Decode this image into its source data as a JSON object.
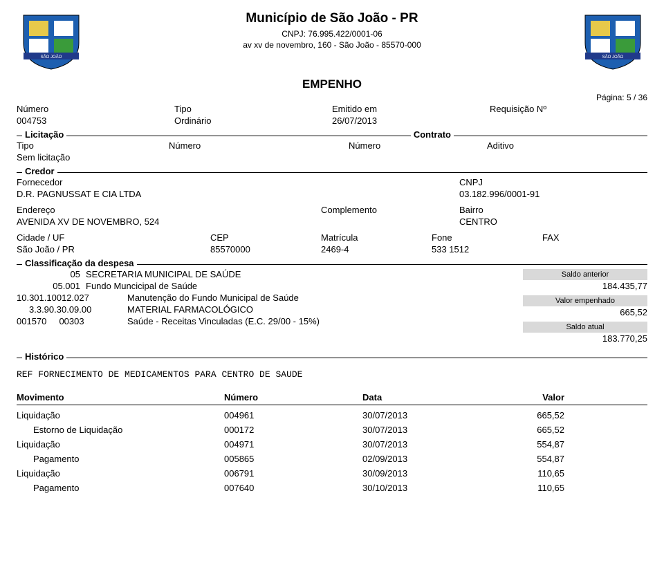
{
  "header": {
    "municipality": "Município de São João - PR",
    "cnpj_line": "CNPJ: 76.995.422/0001-06",
    "address_line": "av xv de novembro, 160 - São João - 85570-000",
    "doc_title": "EMPENHO",
    "page_label": "Página: 5 /   36"
  },
  "info": {
    "numero_label": "Número",
    "numero_value": "004753",
    "tipo_label": "Tipo",
    "tipo_value": "Ordinário",
    "emitido_label": "Emitido em",
    "emitido_value": "26/07/2013",
    "requisicao_label": "Requisição Nº",
    "requisicao_value": ""
  },
  "licitacao": {
    "section_label": "Licitação",
    "contrato_label": "Contrato",
    "tipo_label": "Tipo",
    "numero_label": "Número",
    "numero2_label": "Número",
    "aditivo_label": "Aditivo",
    "tipo_value": "Sem licitação"
  },
  "credor": {
    "section_label": "Credor",
    "fornecedor_label": "Fornecedor",
    "fornecedor_value": "D.R. PAGNUSSAT E CIA LTDA",
    "cnpj_label": "CNPJ",
    "cnpj_value": "03.182.996/0001-91",
    "endereco_label": "Endereço",
    "endereco_value": "AVENIDA XV DE NOVEMBRO, 524",
    "complemento_label": "Complemento",
    "complemento_value": "",
    "bairro_label": "Bairro",
    "bairro_value": "CENTRO",
    "cidade_label": "Cidade / UF",
    "cidade_value": "São João / PR",
    "cep_label": "CEP",
    "cep_value": "85570000",
    "matricula_label": "Matrícula",
    "matricula_value": "2469-4",
    "fone_label": "Fone",
    "fone_value": "533 1512",
    "fax_label": "FAX",
    "fax_value": ""
  },
  "classificacao": {
    "section_label": "Classificação da despesa",
    "lines": [
      {
        "code": "05",
        "desc": "SECRETARIA MUNICIPAL DE SAÚDE"
      },
      {
        "code": "05.001",
        "desc": "Fundo Muncicipal de Saúde"
      },
      {
        "code": "10.301.10012.027",
        "desc": "Manutenção do Fundo Municipal de Saúde"
      },
      {
        "code": "3.3.90.30.09.00",
        "desc": "MATERIAL FARMACOLÓGICO"
      },
      {
        "code": "001570     00303",
        "desc": "Saúde - Receitas Vinculadas (E.C. 29/00 - 15%)"
      }
    ],
    "saldo_ant_label": "Saldo anterior",
    "saldo_ant_value": "184.435,77",
    "valor_emp_label": "Valor empenhado",
    "valor_emp_value": "665,52",
    "saldo_atual_label": "Saldo atual",
    "saldo_atual_value": "183.770,25"
  },
  "historico": {
    "section_label": "Histórico",
    "text": "REF FORNECIMENTO DE MEDICAMENTOS PARA CENTRO DE SAUDE"
  },
  "movimento": {
    "headers": {
      "m1": "Movimento",
      "m2": "Número",
      "m3": "Data",
      "m4": "Valor"
    },
    "rows": [
      {
        "indent": false,
        "m1": "Liquidação",
        "m2": "004961",
        "m3": "30/07/2013",
        "m4": "665,52"
      },
      {
        "indent": true,
        "m1": "Estorno de Liquidação",
        "m2": "000172",
        "m3": "30/07/2013",
        "m4": "665,52"
      },
      {
        "indent": false,
        "m1": "Liquidação",
        "m2": "004971",
        "m3": "30/07/2013",
        "m4": "554,87"
      },
      {
        "indent": true,
        "m1": "Pagamento",
        "m2": "005865",
        "m3": "02/09/2013",
        "m4": "554,87"
      },
      {
        "indent": false,
        "m1": "Liquidação",
        "m2": "006791",
        "m3": "30/09/2013",
        "m4": "110,65"
      },
      {
        "indent": true,
        "m1": "Pagamento",
        "m2": "007640",
        "m3": "30/10/2013",
        "m4": "110,65"
      }
    ]
  },
  "colors": {
    "text": "#000000",
    "bg": "#ffffff",
    "shade": "#d9d9d9",
    "crest_blue": "#1d5fb0",
    "crest_green": "#3a9b3a",
    "crest_yellow": "#e7c94a",
    "crest_band": "#203a8a"
  }
}
